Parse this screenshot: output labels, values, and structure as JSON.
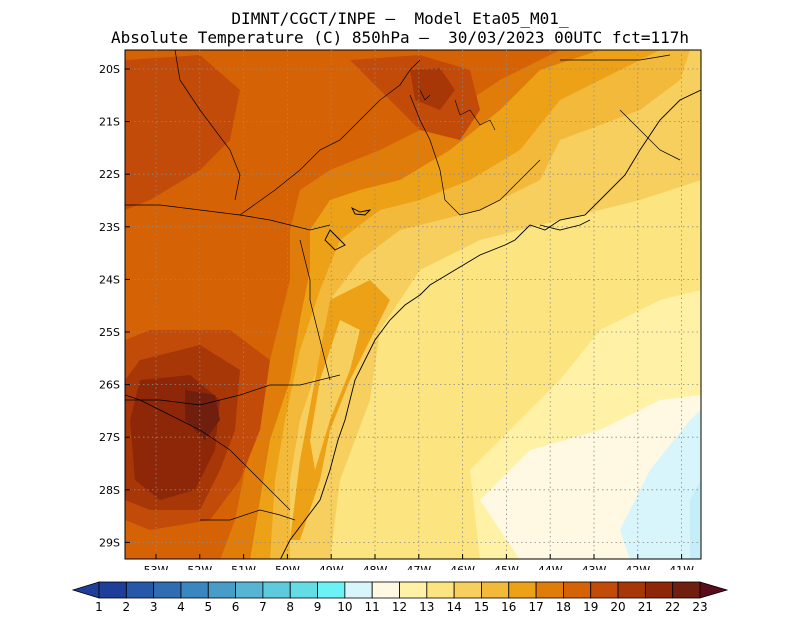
{
  "title": {
    "line1": "DIMNT/CGCT/INPE –  Model Eta05_M01_",
    "line2": "Absolute Temperature (C) 850hPa –  30/03/2023 00UTC fct=117h"
  },
  "map": {
    "lat_ticks": [
      "20S",
      "21S",
      "22S",
      "23S",
      "24S",
      "25S",
      "26S",
      "27S",
      "28S",
      "29S"
    ],
    "lon_ticks": [
      "53W",
      "52W",
      "51W",
      "50W",
      "49W",
      "48W",
      "47W",
      "46W",
      "45W",
      "44W",
      "43W",
      "42W",
      "41W"
    ],
    "gridlines": "dotted",
    "field": "temperature_850hPa"
  },
  "colorbar": {
    "labels": [
      "1",
      "2",
      "3",
      "4",
      "5",
      "6",
      "7",
      "8",
      "9",
      "10",
      "11",
      "12",
      "13",
      "14",
      "15",
      "16",
      "17",
      "18",
      "19",
      "20",
      "21",
      "22",
      "23"
    ],
    "colors": [
      "#1f3e99",
      "#2657a8",
      "#2f6cb2",
      "#3a86be",
      "#479dc8",
      "#55b5d2",
      "#5ecbdc",
      "#64dce6",
      "#6cf2f6",
      "#d8f5fb",
      "#fff8e2",
      "#fff1a6",
      "#fce480",
      "#f7cf5e",
      "#f2b93b",
      "#eda117",
      "#e07c0a",
      "#d66206",
      "#c24b0a",
      "#a83708",
      "#8e2708",
      "#701e0e",
      "#5a0c1a"
    ],
    "under_color": "#1f3e99",
    "over_color": "#5a0c1a"
  }
}
